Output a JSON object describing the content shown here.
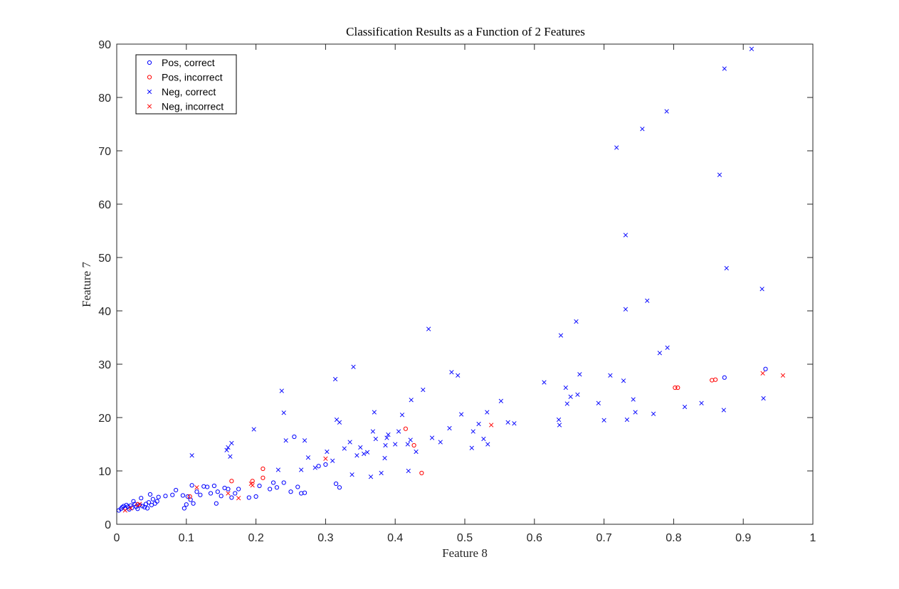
{
  "chart_data": {
    "type": "scatter",
    "title": "Classification Results as a Function of 2 Features",
    "xlabel": "Feature 8",
    "ylabel": "Feature 7",
    "xlim": [
      0,
      1
    ],
    "ylim": [
      0,
      90
    ],
    "xticks": [
      0,
      0.1,
      0.2,
      0.3,
      0.4,
      0.5,
      0.6,
      0.7,
      0.8,
      0.9,
      1
    ],
    "xtick_labels": [
      "0",
      "0.1",
      "0.2",
      "0.3",
      "0.4",
      "0.5",
      "0.6",
      "0.7",
      "0.8",
      "0.9",
      "1"
    ],
    "yticks": [
      0,
      10,
      20,
      30,
      40,
      50,
      60,
      70,
      80,
      90
    ],
    "ytick_labels": [
      "0",
      "10",
      "20",
      "30",
      "40",
      "50",
      "60",
      "70",
      "80",
      "90"
    ],
    "grid": false,
    "legend_position": "top-left",
    "series": [
      {
        "name": "Pos, correct",
        "marker": "circle",
        "color": "#0000ff",
        "points": [
          [
            0.003,
            2.6
          ],
          [
            0.006,
            2.9
          ],
          [
            0.008,
            3.2
          ],
          [
            0.01,
            3.4
          ],
          [
            0.012,
            3.0
          ],
          [
            0.014,
            3.6
          ],
          [
            0.016,
            3.3
          ],
          [
            0.018,
            2.8
          ],
          [
            0.02,
            3.5
          ],
          [
            0.022,
            3.1
          ],
          [
            0.024,
            4.3
          ],
          [
            0.026,
            3.8
          ],
          [
            0.028,
            3.3
          ],
          [
            0.03,
            2.9
          ],
          [
            0.033,
            3.6
          ],
          [
            0.035,
            4.9
          ],
          [
            0.037,
            3.4
          ],
          [
            0.04,
            3.2
          ],
          [
            0.042,
            3.8
          ],
          [
            0.044,
            3.0
          ],
          [
            0.046,
            4.1
          ],
          [
            0.048,
            5.6
          ],
          [
            0.05,
            3.6
          ],
          [
            0.052,
            4.7
          ],
          [
            0.055,
            3.9
          ],
          [
            0.058,
            4.3
          ],
          [
            0.06,
            5.1
          ],
          [
            0.07,
            5.3
          ],
          [
            0.08,
            5.5
          ],
          [
            0.085,
            6.4
          ],
          [
            0.095,
            5.4
          ],
          [
            0.097,
            3.0
          ],
          [
            0.1,
            3.7
          ],
          [
            0.102,
            5.2
          ],
          [
            0.106,
            4.6
          ],
          [
            0.108,
            7.3
          ],
          [
            0.11,
            3.9
          ],
          [
            0.115,
            6.1
          ],
          [
            0.12,
            5.5
          ],
          [
            0.125,
            7.1
          ],
          [
            0.13,
            7.0
          ],
          [
            0.135,
            5.8
          ],
          [
            0.14,
            7.2
          ],
          [
            0.143,
            3.9
          ],
          [
            0.145,
            6.1
          ],
          [
            0.15,
            5.3
          ],
          [
            0.155,
            6.8
          ],
          [
            0.16,
            6.6
          ],
          [
            0.165,
            5.0
          ],
          [
            0.17,
            5.8
          ],
          [
            0.175,
            6.6
          ],
          [
            0.19,
            5.0
          ],
          [
            0.2,
            5.2
          ],
          [
            0.205,
            7.2
          ],
          [
            0.22,
            6.6
          ],
          [
            0.225,
            7.8
          ],
          [
            0.23,
            6.9
          ],
          [
            0.24,
            7.8
          ],
          [
            0.25,
            6.1
          ],
          [
            0.255,
            16.4
          ],
          [
            0.26,
            7.0
          ],
          [
            0.265,
            5.8
          ],
          [
            0.27,
            5.9
          ],
          [
            0.29,
            10.9
          ],
          [
            0.3,
            11.2
          ],
          [
            0.315,
            7.6
          ],
          [
            0.32,
            6.9
          ],
          [
            0.873,
            27.5
          ],
          [
            0.932,
            29.1
          ]
        ]
      },
      {
        "name": "Pos, incorrect",
        "marker": "circle",
        "color": "#ff0000",
        "points": [
          [
            0.03,
            3.7
          ],
          [
            0.105,
            5.2
          ],
          [
            0.165,
            8.1
          ],
          [
            0.195,
            8.1
          ],
          [
            0.21,
            8.7
          ],
          [
            0.21,
            10.4
          ],
          [
            0.415,
            17.9
          ],
          [
            0.427,
            14.8
          ],
          [
            0.438,
            9.6
          ],
          [
            0.802,
            25.6
          ],
          [
            0.806,
            25.6
          ],
          [
            0.855,
            27.0
          ],
          [
            0.86,
            27.1
          ]
        ]
      },
      {
        "name": "Neg, correct",
        "marker": "x",
        "color": "#0000ff",
        "points": [
          [
            0.108,
            12.9
          ],
          [
            0.158,
            13.9
          ],
          [
            0.16,
            14.4
          ],
          [
            0.163,
            12.7
          ],
          [
            0.165,
            15.2
          ],
          [
            0.197,
            17.8
          ],
          [
            0.232,
            10.2
          ],
          [
            0.237,
            25.0
          ],
          [
            0.24,
            20.9
          ],
          [
            0.243,
            15.7
          ],
          [
            0.265,
            10.2
          ],
          [
            0.27,
            15.7
          ],
          [
            0.275,
            12.5
          ],
          [
            0.285,
            10.6
          ],
          [
            0.302,
            13.6
          ],
          [
            0.31,
            11.9
          ],
          [
            0.314,
            27.2
          ],
          [
            0.316,
            19.6
          ],
          [
            0.32,
            19.1
          ],
          [
            0.327,
            14.2
          ],
          [
            0.335,
            15.4
          ],
          [
            0.338,
            9.3
          ],
          [
            0.34,
            29.5
          ],
          [
            0.345,
            12.9
          ],
          [
            0.35,
            14.4
          ],
          [
            0.355,
            13.2
          ],
          [
            0.36,
            13.5
          ],
          [
            0.365,
            8.9
          ],
          [
            0.368,
            17.4
          ],
          [
            0.37,
            21.0
          ],
          [
            0.372,
            16.0
          ],
          [
            0.38,
            9.6
          ],
          [
            0.385,
            12.4
          ],
          [
            0.386,
            14.8
          ],
          [
            0.388,
            16.2
          ],
          [
            0.39,
            16.8
          ],
          [
            0.4,
            15.0
          ],
          [
            0.405,
            17.4
          ],
          [
            0.41,
            20.5
          ],
          [
            0.418,
            15.0
          ],
          [
            0.419,
            10.0
          ],
          [
            0.422,
            15.8
          ],
          [
            0.423,
            23.3
          ],
          [
            0.43,
            13.6
          ],
          [
            0.44,
            25.2
          ],
          [
            0.448,
            36.6
          ],
          [
            0.453,
            16.2
          ],
          [
            0.465,
            15.4
          ],
          [
            0.478,
            18.0
          ],
          [
            0.481,
            28.5
          ],
          [
            0.49,
            27.9
          ],
          [
            0.495,
            20.6
          ],
          [
            0.51,
            14.3
          ],
          [
            0.512,
            17.4
          ],
          [
            0.52,
            18.8
          ],
          [
            0.527,
            16.0
          ],
          [
            0.532,
            21.0
          ],
          [
            0.533,
            15.0
          ],
          [
            0.552,
            23.1
          ],
          [
            0.562,
            19.1
          ],
          [
            0.571,
            18.9
          ],
          [
            0.614,
            26.6
          ],
          [
            0.635,
            19.6
          ],
          [
            0.636,
            18.6
          ],
          [
            0.638,
            35.4
          ],
          [
            0.645,
            25.6
          ],
          [
            0.647,
            22.6
          ],
          [
            0.652,
            23.9
          ],
          [
            0.66,
            38.0
          ],
          [
            0.662,
            24.3
          ],
          [
            0.665,
            28.1
          ],
          [
            0.692,
            22.7
          ],
          [
            0.7,
            19.5
          ],
          [
            0.709,
            27.9
          ],
          [
            0.718,
            70.6
          ],
          [
            0.728,
            26.9
          ],
          [
            0.731,
            54.2
          ],
          [
            0.731,
            40.3
          ],
          [
            0.733,
            19.6
          ],
          [
            0.742,
            23.4
          ],
          [
            0.745,
            21.0
          ],
          [
            0.755,
            74.1
          ],
          [
            0.762,
            41.9
          ],
          [
            0.771,
            20.7
          ],
          [
            0.78,
            32.1
          ],
          [
            0.79,
            77.4
          ],
          [
            0.791,
            33.1
          ],
          [
            0.816,
            22.0
          ],
          [
            0.84,
            22.7
          ],
          [
            0.866,
            65.5
          ],
          [
            0.872,
            21.4
          ],
          [
            0.873,
            85.4
          ],
          [
            0.876,
            48.0
          ],
          [
            0.912,
            89.1
          ],
          [
            0.927,
            44.1
          ],
          [
            0.929,
            23.6
          ]
        ]
      },
      {
        "name": "Neg, incorrect",
        "marker": "x",
        "color": "#ff0000",
        "points": [
          [
            0.012,
            2.6
          ],
          [
            0.02,
            3.0
          ],
          [
            0.033,
            3.8
          ],
          [
            0.115,
            6.9
          ],
          [
            0.16,
            5.8
          ],
          [
            0.175,
            4.9
          ],
          [
            0.193,
            7.6
          ],
          [
            0.195,
            7.3
          ],
          [
            0.3,
            12.3
          ],
          [
            0.538,
            18.6
          ],
          [
            0.928,
            28.3
          ],
          [
            0.957,
            27.9
          ]
        ]
      }
    ]
  }
}
